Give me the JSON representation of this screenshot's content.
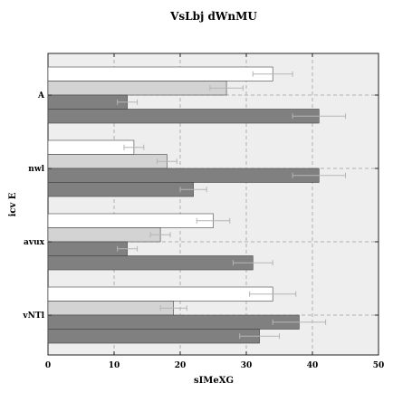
{
  "chart_data": {
    "type": "bar",
    "orientation": "horizontal",
    "title": "VsLbj dWnMU",
    "xlabel": "sIMeXG",
    "ylabel": "icv E",
    "xlim": [
      0,
      50
    ],
    "xticks": [
      0,
      10,
      20,
      30,
      40,
      50
    ],
    "categories": [
      "A",
      "nwl",
      "avux",
      "vNTl"
    ],
    "grid": true,
    "series": [
      {
        "color": "#ffffff",
        "values": [
          34,
          13,
          25,
          34
        ],
        "errors": [
          3,
          1.5,
          2.5,
          3.5
        ]
      },
      {
        "color": "#d3d3d3",
        "values": [
          27,
          18,
          17,
          19
        ],
        "errors": [
          2.5,
          1.5,
          1.5,
          2
        ]
      },
      {
        "color": "#808080",
        "values": [
          12,
          41,
          12,
          38
        ],
        "errors": [
          1.5,
          4,
          1.5,
          4
        ]
      },
      {
        "color": "#808080",
        "values": [
          41,
          22,
          31,
          32
        ],
        "errors": [
          4,
          2,
          3,
          3
        ]
      }
    ]
  }
}
